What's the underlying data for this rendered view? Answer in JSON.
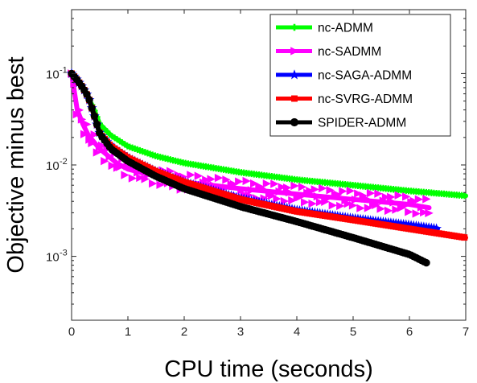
{
  "chart_data": {
    "type": "line",
    "title": "",
    "xlabel": "CPU time (seconds)",
    "ylabel": "Objective minus best",
    "xlim": [
      0,
      7
    ],
    "ylim": [
      0.0002,
      0.5
    ],
    "yscale": "log",
    "grid": false,
    "legend_position": "top-right",
    "x_ticks": [
      "0",
      "1",
      "2",
      "3",
      "4",
      "5",
      "6",
      "7"
    ],
    "y_ticks": [
      {
        "value": 0.1,
        "base": "10",
        "exp": "-1"
      },
      {
        "value": 0.01,
        "base": "10",
        "exp": "-2"
      },
      {
        "value": 0.001,
        "base": "10",
        "exp": "-3"
      }
    ],
    "series": [
      {
        "name": "nc-ADMM",
        "color": "#00ff00",
        "marker": "plus",
        "x": [
          0,
          0.1,
          0.2,
          0.3,
          0.4,
          0.5,
          0.7,
          1.0,
          1.5,
          2.0,
          3.0,
          4.0,
          5.0,
          6.0,
          7.0
        ],
        "y": [
          0.1,
          0.085,
          0.07,
          0.055,
          0.04,
          0.028,
          0.021,
          0.016,
          0.0125,
          0.0105,
          0.0083,
          0.0069,
          0.006,
          0.0052,
          0.0046
        ]
      },
      {
        "name": "nc-SADMM",
        "color": "#ff00ff",
        "marker": "triangle-right",
        "x": [
          0,
          0.1,
          0.2,
          0.3,
          0.5,
          0.8,
          1.0,
          1.5,
          2.0,
          3.0,
          4.0,
          5.0,
          6.0,
          6.35
        ],
        "y": [
          0.1,
          0.04,
          0.028,
          0.021,
          0.015,
          0.0105,
          0.009,
          0.0075,
          0.0065,
          0.0055,
          0.0048,
          0.0042,
          0.0037,
          0.0034
        ]
      },
      {
        "name": "nc-SAGA-ADMM",
        "color": "#0000ff",
        "marker": "star",
        "x": [
          0,
          0.1,
          0.2,
          0.3,
          0.4,
          0.5,
          0.7,
          1.0,
          1.5,
          2.0,
          3.0,
          4.0,
          5.0,
          6.0,
          6.5
        ],
        "y": [
          0.1,
          0.085,
          0.07,
          0.055,
          0.035,
          0.022,
          0.016,
          0.012,
          0.0085,
          0.0065,
          0.0043,
          0.0032,
          0.0026,
          0.0022,
          0.002
        ]
      },
      {
        "name": "nc-SVRG-ADMM",
        "color": "#ff0000",
        "marker": "square",
        "x": [
          0,
          0.1,
          0.2,
          0.3,
          0.4,
          0.5,
          0.7,
          1.0,
          1.5,
          2.0,
          3.0,
          4.0,
          5.0,
          6.0,
          7.0
        ],
        "y": [
          0.1,
          0.085,
          0.07,
          0.055,
          0.035,
          0.022,
          0.016,
          0.012,
          0.0085,
          0.0065,
          0.0042,
          0.0031,
          0.0025,
          0.002,
          0.0016
        ]
      },
      {
        "name": "SPIDER-ADMM",
        "color": "#000000",
        "marker": "circle",
        "x": [
          0,
          0.1,
          0.2,
          0.3,
          0.4,
          0.5,
          0.7,
          1.0,
          1.5,
          2.0,
          3.0,
          4.0,
          5.0,
          6.0,
          6.3
        ],
        "y": [
          0.1,
          0.085,
          0.07,
          0.055,
          0.035,
          0.022,
          0.015,
          0.011,
          0.0075,
          0.0055,
          0.0035,
          0.0024,
          0.0016,
          0.00105,
          0.00085
        ]
      }
    ]
  }
}
